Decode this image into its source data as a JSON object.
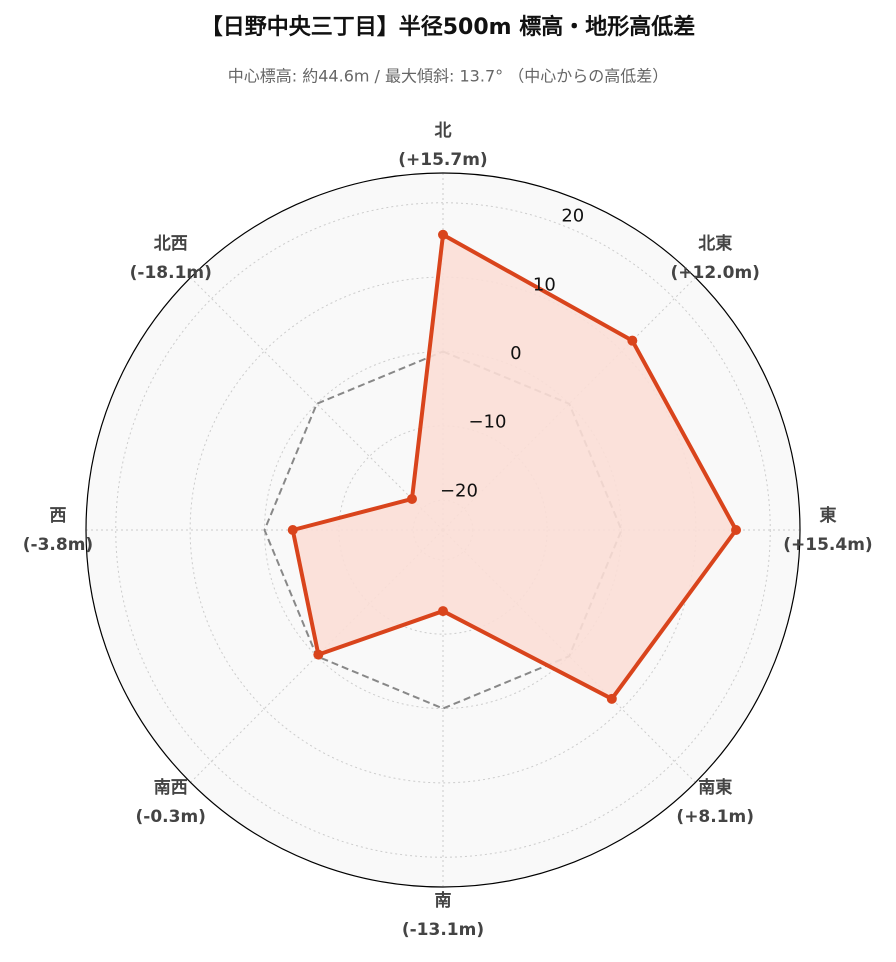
{
  "chart_data": {
    "type": "radar",
    "title": "【日野中央三丁目】半径500m 標高・地形高低差",
    "subtitle": "中心標高: 約44.6m / 最大傾斜: 13.7° （中心からの高低差）",
    "categories": [
      "北",
      "北東",
      "東",
      "南東",
      "南",
      "南西",
      "西",
      "北西"
    ],
    "values": [
      15.7,
      12.0,
      15.4,
      8.1,
      -13.1,
      -0.3,
      -3.8,
      -18.1
    ],
    "value_labels": [
      "(+15.7m)",
      "(+12.0m)",
      "(+15.4m)",
      "(+8.1m)",
      "(-13.1m)",
      "(-0.3m)",
      "(-3.8m)",
      "(-18.1m)"
    ],
    "color": "#d9441c",
    "fill_color": "#fbded6",
    "ylim": [
      -24,
      24
    ],
    "yticks": [
      {
        "value": -20,
        "label": "−20"
      },
      {
        "value": -10,
        "label": "−10"
      },
      0,
      10,
      20
    ],
    "reference_line": 0,
    "reference_color": "#888888",
    "grid": true
  }
}
